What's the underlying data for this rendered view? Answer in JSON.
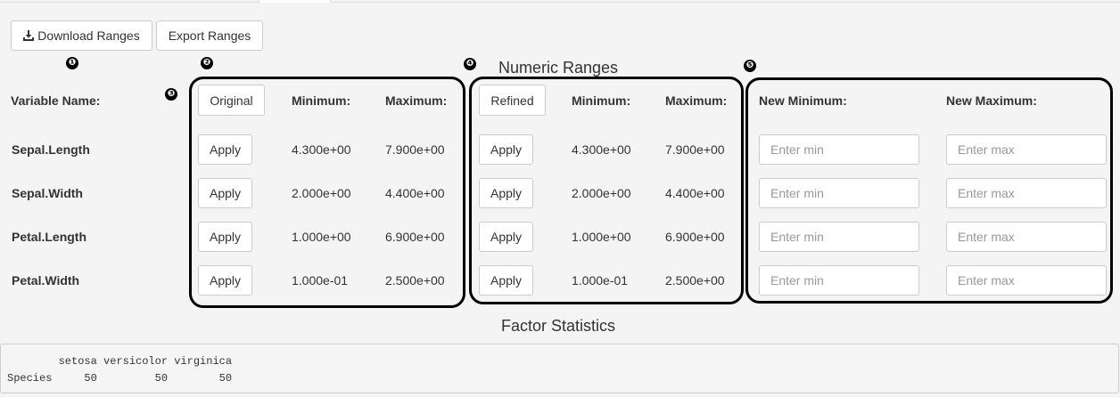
{
  "toolbar": {
    "download_label": "Download Ranges",
    "export_label": "Export Ranges",
    "download_icon": "download-icon"
  },
  "markers": [
    "❶",
    "❷",
    "❸",
    "❹",
    "❺",
    "❻"
  ],
  "numeric_ranges": {
    "title": "Numeric Ranges",
    "variable_header": "Variable Name:",
    "original": {
      "button_label": "Original",
      "min_header": "Minimum:",
      "max_header": "Maximum:"
    },
    "refined": {
      "button_label": "Refined",
      "min_header": "Minimum:",
      "max_header": "Maximum:"
    },
    "new_min_header": "New Minimum:",
    "new_max_header": "New Maximum:",
    "apply_label": "Apply",
    "min_placeholder": "Enter min",
    "max_placeholder": "Enter max",
    "rows": [
      {
        "name": "Sepal.Length",
        "orig_min": "4.300e+00",
        "orig_max": "7.900e+00",
        "ref_min": "4.300e+00",
        "ref_max": "7.900e+00"
      },
      {
        "name": "Sepal.Width",
        "orig_min": "2.000e+00",
        "orig_max": "4.400e+00",
        "ref_min": "2.000e+00",
        "ref_max": "4.400e+00"
      },
      {
        "name": "Petal.Length",
        "orig_min": "1.000e+00",
        "orig_max": "6.900e+00",
        "ref_min": "1.000e+00",
        "ref_max": "6.900e+00"
      },
      {
        "name": "Petal.Width",
        "orig_min": "1.000e-01",
        "orig_max": "2.500e+00",
        "ref_min": "1.000e-01",
        "ref_max": "2.500e+00"
      }
    ]
  },
  "factor_statistics": {
    "title": "Factor Statistics",
    "output": "        setosa versicolor virginica\nSpecies     50         50        50"
  }
}
